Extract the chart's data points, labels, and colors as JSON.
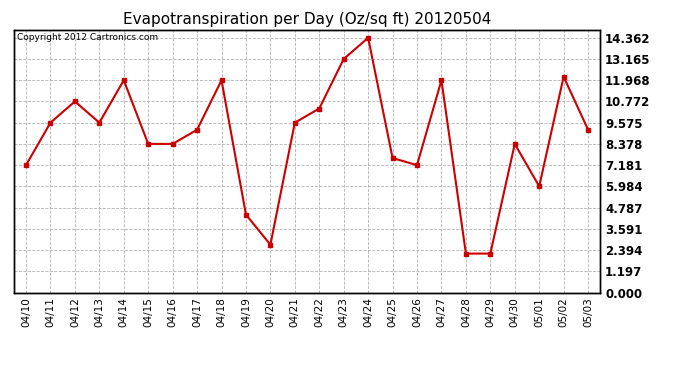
{
  "title": "Evapotranspiration per Day (Oz/sq ft) 20120504",
  "copyright": "Copyright 2012 Cartronics.com",
  "x_labels": [
    "04/10",
    "04/11",
    "04/12",
    "04/13",
    "04/14",
    "04/15",
    "04/16",
    "04/17",
    "04/18",
    "04/19",
    "04/20",
    "04/21",
    "04/22",
    "04/23",
    "04/24",
    "04/25",
    "04/26",
    "04/27",
    "04/28",
    "04/29",
    "04/30",
    "05/01",
    "05/02",
    "05/03"
  ],
  "y_values": [
    7.181,
    9.575,
    10.772,
    9.575,
    11.968,
    8.378,
    8.378,
    9.176,
    11.968,
    4.39,
    2.693,
    9.575,
    10.374,
    13.165,
    14.362,
    7.58,
    7.181,
    11.968,
    2.194,
    2.194,
    8.378,
    5.984,
    12.167,
    9.176
  ],
  "line_color": "#cc0000",
  "marker": "s",
  "marker_size": 3,
  "background_color": "#ffffff",
  "grid_color": "#aaaaaa",
  "y_ticks": [
    0.0,
    1.197,
    2.394,
    3.591,
    4.787,
    5.984,
    7.181,
    8.378,
    9.575,
    10.772,
    11.968,
    13.165,
    14.362
  ],
  "ylim": [
    0.0,
    14.8
  ],
  "figsize": [
    6.9,
    3.75
  ],
  "dpi": 100
}
